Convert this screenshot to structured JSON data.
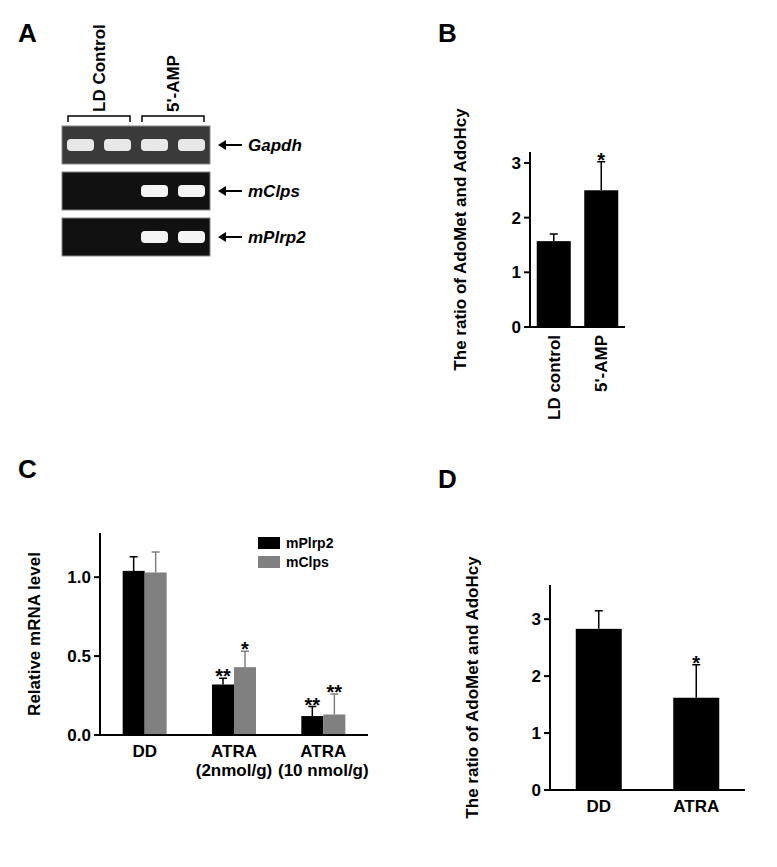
{
  "gel": {
    "panel_label": "A",
    "groups": [
      {
        "label": "LD Control",
        "lanes": 2
      },
      {
        "label": "5'-AMP",
        "lanes": 2
      }
    ],
    "rows": [
      {
        "label": "Gapdh",
        "bands": [
          true,
          true,
          true,
          true
        ]
      },
      {
        "label": "mClps",
        "bands": [
          false,
          false,
          true,
          true
        ]
      },
      {
        "label": "mPlrp2",
        "bands": [
          false,
          false,
          true,
          true
        ]
      }
    ]
  },
  "chart_data": [
    {
      "type": "bar",
      "panel_label": "B",
      "y_label": "The ratio of AdoMet and AdoHcy",
      "categories": [
        "LD control",
        "5'-AMP"
      ],
      "values": [
        1.57,
        2.5
      ],
      "errors": [
        0.13,
        0.52
      ],
      "significance": [
        null,
        "*"
      ],
      "color": "#000000",
      "ylim": [
        0,
        3.2
      ],
      "yticks": [
        0,
        1,
        2,
        3
      ]
    },
    {
      "type": "bar",
      "panel_label": "C",
      "y_label": "Relative mRNA level",
      "categories": [
        "DD",
        "ATRA\n(2nmol/g)",
        "ATRA\n(10 nmol/g)"
      ],
      "series": [
        {
          "name": "mPlrp2",
          "color": "#000000",
          "values": [
            1.04,
            0.32,
            0.12
          ],
          "errors": [
            0.09,
            0.04,
            0.06
          ],
          "significance": [
            null,
            "**",
            "**"
          ]
        },
        {
          "name": "mClps",
          "color": "#808080",
          "values": [
            1.03,
            0.43,
            0.13
          ],
          "errors": [
            0.13,
            0.1,
            0.13
          ],
          "significance": [
            null,
            "*",
            "**"
          ]
        }
      ],
      "legend": "upper right",
      "ylim": [
        0,
        1.28
      ],
      "yticks": [
        {
          "value": 0,
          "label": "0.0"
        },
        {
          "value": 0.5,
          "label": "0.5"
        },
        {
          "value": 1,
          "label": "1.0"
        }
      ]
    },
    {
      "type": "bar",
      "panel_label": "D",
      "y_label": "The ratio of AdoMet and AdoHcy",
      "categories": [
        "DD",
        "ATRA"
      ],
      "values": [
        2.83,
        1.62
      ],
      "errors": [
        0.32,
        0.58
      ],
      "significance": [
        null,
        "*"
      ],
      "color": "#000000",
      "ylim": [
        0,
        3.6
      ],
      "yticks": [
        0,
        1,
        2,
        3
      ]
    }
  ]
}
